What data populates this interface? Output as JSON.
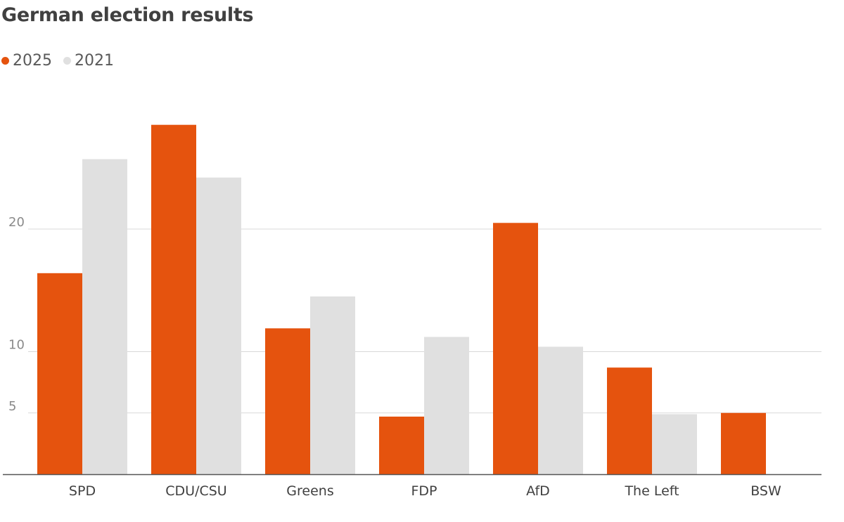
{
  "chart_data": {
    "type": "bar",
    "title": "German election results",
    "categories": [
      "SPD",
      "CDU/CSU",
      "Greens",
      "FDP",
      "AfD",
      "The Left",
      "BSW"
    ],
    "series": [
      {
        "name": "2025",
        "color": "#e5530e",
        "values": [
          16.4,
          28.5,
          11.9,
          4.7,
          20.5,
          8.7,
          5.0
        ]
      },
      {
        "name": "2021",
        "color": "#e0e0e0",
        "values": [
          25.7,
          24.2,
          14.5,
          11.2,
          10.4,
          4.9,
          null
        ]
      }
    ],
    "y_ticks": [
      5,
      10,
      20
    ],
    "ylim": [
      0,
      30
    ],
    "grid": true,
    "legend_position": "top-left"
  }
}
